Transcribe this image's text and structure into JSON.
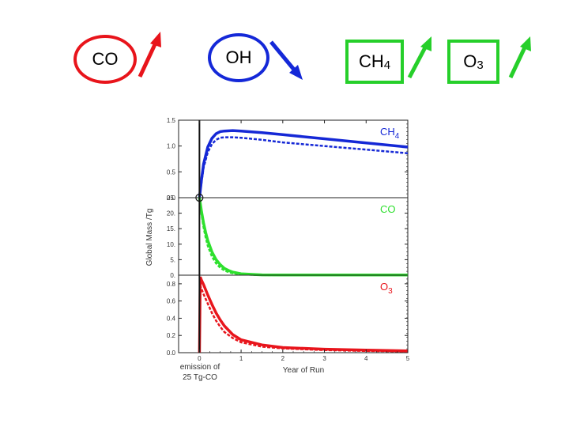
{
  "header": {
    "badges": [
      {
        "text": "CO",
        "sub": "",
        "shape": "ellipse",
        "color": "#e8141b",
        "arrow": "up",
        "arrow_color": "#e8141b"
      },
      {
        "text": "OH",
        "sub": "",
        "shape": "ellipse",
        "color": "#1428d8",
        "arrow": "down",
        "arrow_color": "#1428d8"
      },
      {
        "text": "CH",
        "sub": "4",
        "shape": "rect",
        "color": "#26cf2a",
        "arrow": "up",
        "arrow_color": "#26cf2a"
      },
      {
        "text": "O",
        "sub": "3",
        "shape": "rect",
        "color": "#26cf2a",
        "arrow": "up",
        "arrow_color": "#26cf2a"
      }
    ]
  },
  "chart_data": {
    "type": "line",
    "xlabel": "Year of Run",
    "ylabel": "Global Mass /Tg",
    "xlim": [
      -0.5,
      5
    ],
    "x_ticks": [
      "0",
      "1",
      "2",
      "3",
      "4",
      "5"
    ],
    "annotation": {
      "line1": "emission of",
      "line2": "25 Tg-CO"
    },
    "grid": false,
    "panels": [
      {
        "label": "CH",
        "label_sub": "4",
        "color": "#1528d6",
        "ylim": [
          0,
          1.5
        ],
        "y_ticks": [
          "1.5",
          "1.0",
          "0.5",
          "0.0"
        ],
        "series": [
          {
            "style": "solid",
            "x": [
              0,
              0.05,
              0.1,
              0.2,
              0.3,
              0.4,
              0.5,
              0.6,
              0.8,
              1.0,
              1.5,
              2,
              3,
              4,
              5
            ],
            "y": [
              0,
              0.35,
              0.65,
              0.98,
              1.15,
              1.24,
              1.28,
              1.29,
              1.3,
              1.29,
              1.26,
              1.22,
              1.14,
              1.06,
              0.98
            ]
          },
          {
            "style": "dashed",
            "x": [
              0,
              0.05,
              0.1,
              0.2,
              0.3,
              0.4,
              0.5,
              0.6,
              0.8,
              1.0,
              1.5,
              2,
              3,
              4,
              5
            ],
            "y": [
              0,
              0.3,
              0.58,
              0.88,
              1.04,
              1.12,
              1.16,
              1.17,
              1.17,
              1.16,
              1.12,
              1.07,
              1.0,
              0.93,
              0.86
            ]
          }
        ]
      },
      {
        "label": "CO",
        "label_sub": "",
        "color": "#2ee02e",
        "ylim": [
          0,
          25
        ],
        "y_ticks": [
          "25.",
          "20.",
          "15.",
          "10.",
          "5.",
          "0."
        ],
        "marker": {
          "x": 0,
          "y": 25
        },
        "series": [
          {
            "style": "solid",
            "x": [
              0,
              0.05,
              0.1,
              0.15,
              0.2,
              0.3,
              0.4,
              0.5,
              0.6,
              0.7,
              0.8,
              1.0,
              1.5,
              2,
              3,
              4,
              5
            ],
            "y": [
              25,
              20.5,
              16.8,
              13.7,
              11.2,
              7.5,
              5.0,
              3.4,
              2.2,
              1.5,
              1.0,
              0.45,
              0.1,
              0.05,
              0.05,
              0.05,
              0.05
            ]
          },
          {
            "style": "dashed",
            "x": [
              0,
              0.05,
              0.1,
              0.15,
              0.2,
              0.3,
              0.4,
              0.5,
              0.6,
              0.7,
              0.8,
              1.0,
              1.5,
              2,
              3,
              4,
              5
            ],
            "y": [
              25,
              19.6,
              15.4,
              12.1,
              9.5,
              6.0,
              3.8,
              2.4,
              1.5,
              1.0,
              0.6,
              0.25,
              0.05,
              0.02,
              0.02,
              0.02,
              0.02
            ]
          }
        ]
      },
      {
        "label": "O",
        "label_sub": "3",
        "color": "#e8151c",
        "ylim": [
          0,
          0.9
        ],
        "y_ticks": [
          "0.8",
          "0.6",
          "0.4",
          "0.2",
          "0.0"
        ],
        "series": [
          {
            "style": "solid",
            "x": [
              0,
              0.02,
              0.05,
              0.1,
              0.2,
              0.3,
              0.4,
              0.5,
              0.6,
              0.8,
              1.0,
              1.5,
              2,
              3,
              4,
              5
            ],
            "y": [
              0,
              0.88,
              0.84,
              0.79,
              0.67,
              0.56,
              0.46,
              0.38,
              0.31,
              0.21,
              0.15,
              0.09,
              0.06,
              0.04,
              0.03,
              0.02
            ]
          },
          {
            "style": "dashed",
            "x": [
              0,
              0.02,
              0.05,
              0.1,
              0.2,
              0.3,
              0.4,
              0.5,
              0.6,
              0.8,
              1.0,
              1.5,
              2,
              3,
              4,
              5
            ],
            "y": [
              0,
              0.78,
              0.74,
              0.68,
              0.57,
              0.46,
              0.37,
              0.3,
              0.24,
              0.17,
              0.12,
              0.07,
              0.05,
              0.03,
              0.02,
              0.015
            ]
          }
        ]
      }
    ]
  }
}
